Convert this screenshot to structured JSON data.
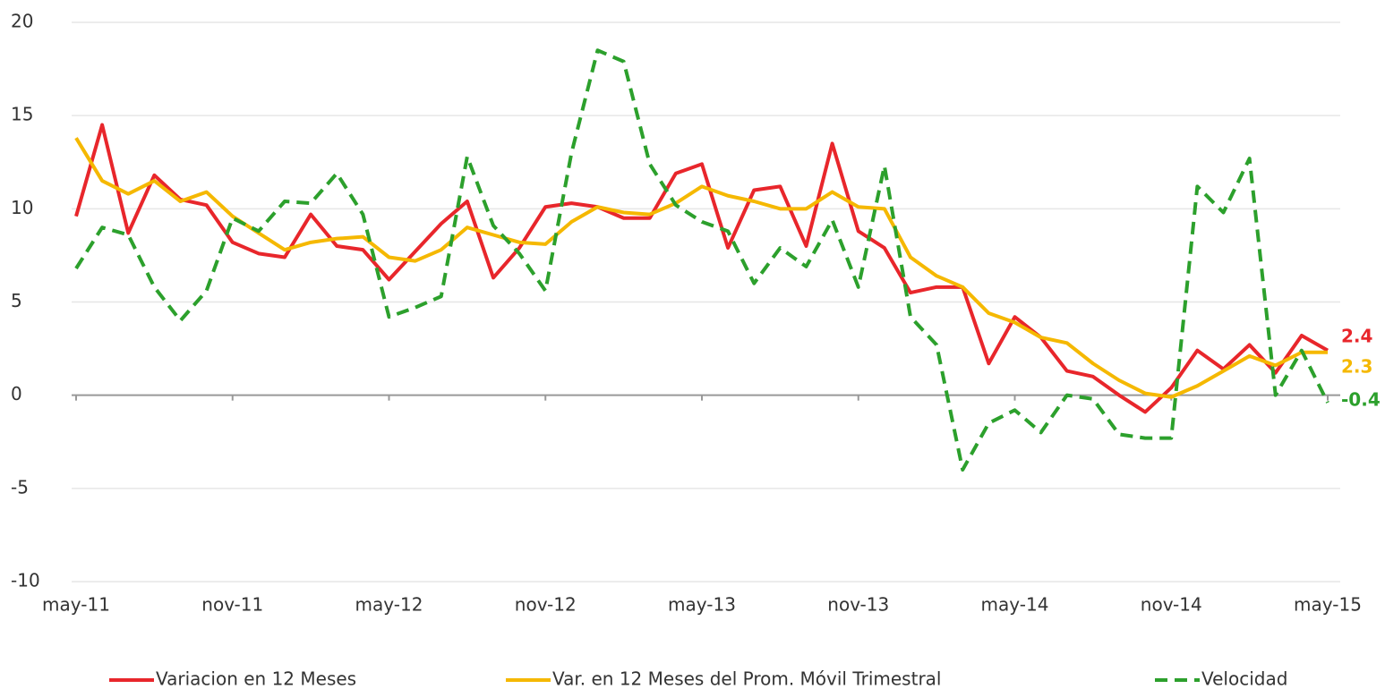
{
  "chart_data": {
    "type": "line",
    "categories": [
      "may-11",
      null,
      null,
      null,
      null,
      null,
      "nov-11",
      null,
      null,
      null,
      null,
      null,
      "may-12",
      null,
      null,
      null,
      null,
      null,
      "nov-12",
      null,
      null,
      null,
      null,
      null,
      "may-13",
      null,
      null,
      null,
      null,
      null,
      "nov-13",
      null,
      null,
      null,
      null,
      null,
      "may-14",
      null,
      null,
      null,
      null,
      null,
      "nov-14",
      null,
      null,
      null,
      null,
      null,
      "may-15"
    ],
    "series": [
      {
        "name": "Variacion en 12 Meses",
        "color": "#e8262b",
        "dashed": false,
        "values": [
          9.6,
          14.5,
          8.7,
          11.8,
          10.5,
          10.2,
          8.2,
          7.6,
          7.4,
          9.7,
          8.0,
          7.8,
          6.2,
          7.7,
          9.2,
          10.4,
          6.3,
          7.9,
          10.1,
          10.3,
          10.1,
          9.5,
          9.5,
          11.9,
          12.4,
          7.9,
          11.0,
          11.2,
          8.0,
          13.5,
          8.8,
          7.9,
          5.5,
          5.8,
          5.8,
          1.7,
          4.2,
          3.1,
          1.3,
          1.0,
          0.0,
          -0.9,
          0.4,
          2.4,
          1.4,
          2.7,
          1.2,
          3.2,
          2.4
        ]
      },
      {
        "name": "Var. en 12 Meses del Prom. Móvil Trimestral",
        "color": "#f5b800",
        "dashed": false,
        "values": [
          13.8,
          11.5,
          10.8,
          11.5,
          10.4,
          10.9,
          9.6,
          8.7,
          7.8,
          8.2,
          8.4,
          8.5,
          7.4,
          7.2,
          7.8,
          9.0,
          8.6,
          8.2,
          8.1,
          9.3,
          10.1,
          9.8,
          9.7,
          10.3,
          11.2,
          10.7,
          10.4,
          10.0,
          10.0,
          10.9,
          10.1,
          10.0,
          7.4,
          6.4,
          5.8,
          4.4,
          3.9,
          3.1,
          2.8,
          1.7,
          0.8,
          0.1,
          -0.1,
          0.5,
          1.3,
          2.1,
          1.6,
          2.3,
          2.3
        ]
      },
      {
        "name": "Velocidad",
        "color": "#2ca02c",
        "dashed": true,
        "values": [
          6.8,
          9.0,
          8.6,
          5.8,
          4.0,
          5.6,
          9.5,
          8.8,
          10.4,
          10.3,
          11.9,
          9.7,
          4.2,
          4.7,
          5.3,
          12.8,
          9.1,
          7.6,
          5.6,
          13.0,
          18.5,
          17.9,
          12.4,
          10.2,
          9.3,
          8.8,
          6.0,
          7.9,
          6.9,
          9.4,
          5.8,
          12.3,
          4.2,
          2.7,
          -4.0,
          -1.5,
          -0.8,
          -2.0,
          0.0,
          -0.2,
          -2.1,
          -2.3,
          -2.3,
          11.2,
          9.8,
          12.7,
          0.0,
          2.4,
          -0.4
        ]
      }
    ],
    "ylim": [
      -10,
      20
    ],
    "yticks": [
      -10,
      -5,
      0,
      5,
      10,
      15,
      20
    ],
    "grid": true,
    "legend": "bottom"
  }
}
